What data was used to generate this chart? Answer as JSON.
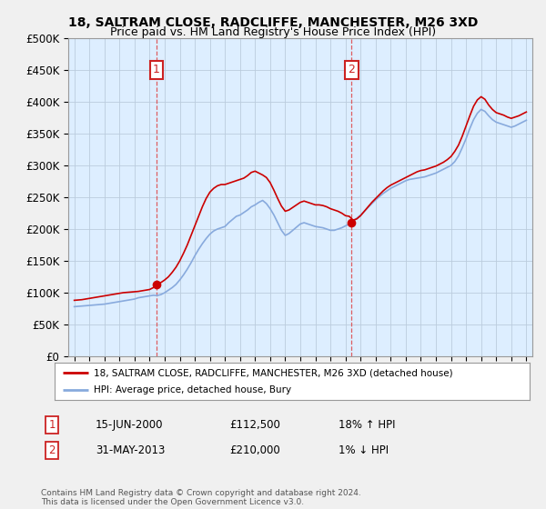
{
  "title1": "18, SALTRAM CLOSE, RADCLIFFE, MANCHESTER, M26 3XD",
  "title2": "Price paid vs. HM Land Registry's House Price Index (HPI)",
  "legend_line1": "18, SALTRAM CLOSE, RADCLIFFE, MANCHESTER, M26 3XD (detached house)",
  "legend_line2": "HPI: Average price, detached house, Bury",
  "annotation1_label": "1",
  "annotation1_date": "15-JUN-2000",
  "annotation1_price": "£112,500",
  "annotation1_hpi": "18% ↑ HPI",
  "annotation2_label": "2",
  "annotation2_date": "31-MAY-2013",
  "annotation2_price": "£210,000",
  "annotation2_hpi": "1% ↓ HPI",
  "footer": "Contains HM Land Registry data © Crown copyright and database right 2024.\nThis data is licensed under the Open Government Licence v3.0.",
  "red_line_color": "#cc0000",
  "blue_line_color": "#88aadd",
  "plot_bg_color": "#ddeeff",
  "fig_bg_color": "#f0f0f0",
  "grid_color": "#bbccdd",
  "vline_color": "#dd4444",
  "ylim": [
    0,
    500000
  ],
  "yticks": [
    0,
    50000,
    100000,
    150000,
    200000,
    250000,
    300000,
    350000,
    400000,
    450000,
    500000
  ],
  "purchase1_x": 2000.45,
  "purchase1_y": 112500,
  "purchase2_x": 2013.41,
  "purchase2_y": 210000,
  "xmin": 1994.6,
  "xmax": 2025.4
}
